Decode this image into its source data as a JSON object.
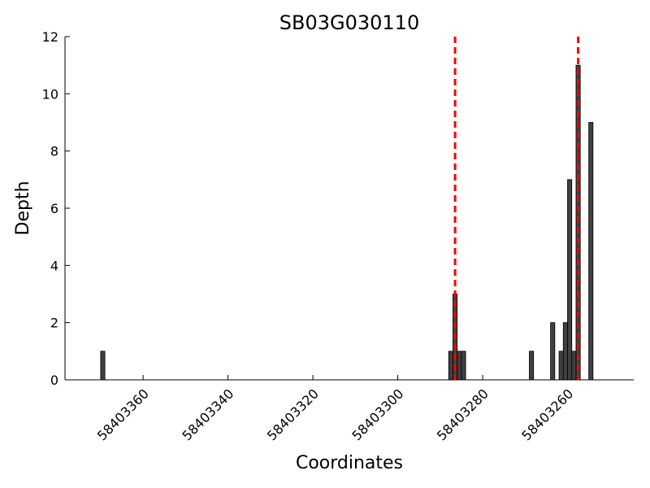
{
  "chart_data": {
    "type": "bar",
    "title": "SB03G030110",
    "xlabel": "Coordinates",
    "ylabel": "Depth",
    "x": [
      58403369,
      58403287,
      58403286,
      58403285,
      58403284,
      58403268,
      58403263,
      58403261,
      58403260,
      58403259,
      58403258,
      58403257,
      58403254
    ],
    "values": [
      1,
      1,
      3,
      1,
      1,
      1,
      2,
      1,
      2,
      7,
      1,
      11,
      9
    ],
    "color": "#404040",
    "vlines": [
      58403286.5,
      58403257.5
    ],
    "vline_color": "#ff0000",
    "xlim": [
      58403378.4,
      58403244.4
    ],
    "xticks": [
      58403360,
      58403340,
      58403320,
      58403300,
      58403280,
      58403260
    ],
    "ylim": [
      0,
      12
    ],
    "yticks": [
      0,
      2,
      4,
      6,
      8,
      10,
      12
    ]
  }
}
